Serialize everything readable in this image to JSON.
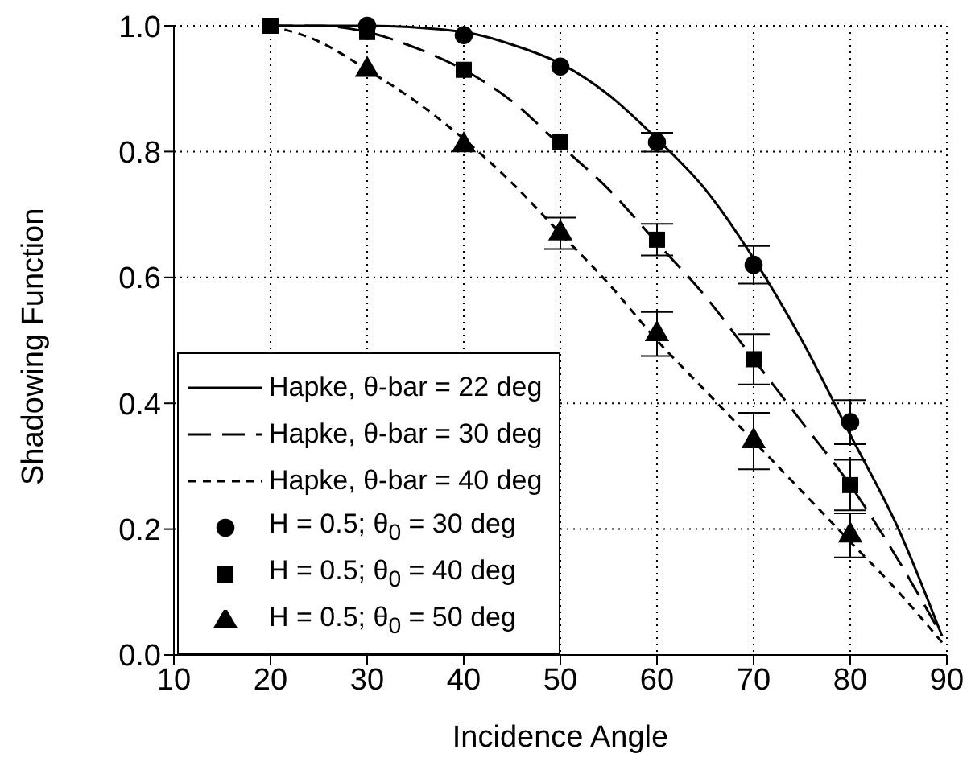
{
  "chart_data": {
    "type": "line",
    "xlabel": "Incidence Angle",
    "ylabel": "Shadowing Function",
    "xlim": [
      10,
      90
    ],
    "xticks": [
      10,
      20,
      30,
      40,
      50,
      60,
      70,
      80,
      90
    ],
    "ylim": [
      0,
      1
    ],
    "yticks": [
      {
        "value": 0,
        "label": "0.0"
      },
      {
        "value": 0.2,
        "label": "0.2"
      },
      {
        "value": 0.4,
        "label": "0.4"
      },
      {
        "value": 0.6,
        "label": "0.6"
      },
      {
        "value": 0.8,
        "label": "0.8"
      },
      {
        "value": 1,
        "label": "1.0"
      }
    ],
    "grid": true,
    "legend": "bottom left",
    "series": [
      {
        "name": "Hapke, θ-bar = 22 deg",
        "type": "line",
        "color": "#000000",
        "line_style": "solid",
        "marker": "none",
        "x": [
          20,
          30,
          40,
          45,
          50,
          55,
          60,
          65,
          70,
          75,
          80,
          85,
          89.5
        ],
        "values": [
          1.0,
          1.0,
          0.99,
          0.97,
          0.94,
          0.89,
          0.82,
          0.74,
          0.63,
          0.5,
          0.35,
          0.2,
          0.03
        ]
      },
      {
        "name": "Hapke, θ-bar = 30 deg",
        "type": "line",
        "color": "#000000",
        "line_style": "dashed",
        "marker": "none",
        "x": [
          20,
          25,
          30,
          35,
          40,
          45,
          50,
          55,
          60,
          65,
          70,
          75,
          80,
          85,
          89.5
        ],
        "values": [
          1.0,
          1.0,
          0.99,
          0.965,
          0.93,
          0.88,
          0.81,
          0.74,
          0.655,
          0.57,
          0.47,
          0.37,
          0.27,
          0.15,
          0.03
        ]
      },
      {
        "name": "Hapke, θ-bar = 40 deg",
        "type": "line",
        "color": "#000000",
        "line_style": "dotted",
        "marker": "none",
        "x": [
          20,
          25,
          30,
          35,
          40,
          45,
          50,
          55,
          60,
          65,
          70,
          75,
          80,
          85,
          89.5
        ],
        "values": [
          1.0,
          0.975,
          0.93,
          0.88,
          0.82,
          0.75,
          0.67,
          0.59,
          0.5,
          0.42,
          0.34,
          0.26,
          0.18,
          0.1,
          0.02
        ]
      },
      {
        "name": "H = 0.5; θ$_{0}$ = 30 deg",
        "type": "scatter",
        "color": "#000000",
        "marker": "circle",
        "x": [
          30,
          40,
          50,
          60,
          70,
          80
        ],
        "values": [
          1.0,
          0.985,
          0.935,
          0.815,
          0.62,
          0.37
        ],
        "errors": [
          null,
          null,
          null,
          0.015,
          0.03,
          0.035
        ]
      },
      {
        "name": "H = 0.5; θ$_{0}$ = 40 deg",
        "type": "scatter",
        "color": "#000000",
        "marker": "square",
        "x": [
          20,
          30,
          40,
          50,
          60,
          70,
          80
        ],
        "values": [
          1.0,
          0.99,
          0.93,
          0.815,
          0.66,
          0.47,
          0.27
        ],
        "errors": [
          null,
          null,
          null,
          null,
          0.025,
          0.04,
          0.04
        ]
      },
      {
        "name": "H = 0.5; θ$_{0}$ = 50 deg",
        "type": "scatter",
        "color": "#000000",
        "marker": "triangle",
        "x": [
          30,
          40,
          50,
          60,
          70,
          80
        ],
        "values": [
          0.93,
          0.81,
          0.67,
          0.51,
          0.34,
          0.19
        ],
        "errors": [
          null,
          null,
          0.025,
          0.035,
          0.045,
          0.035
        ]
      }
    ]
  }
}
